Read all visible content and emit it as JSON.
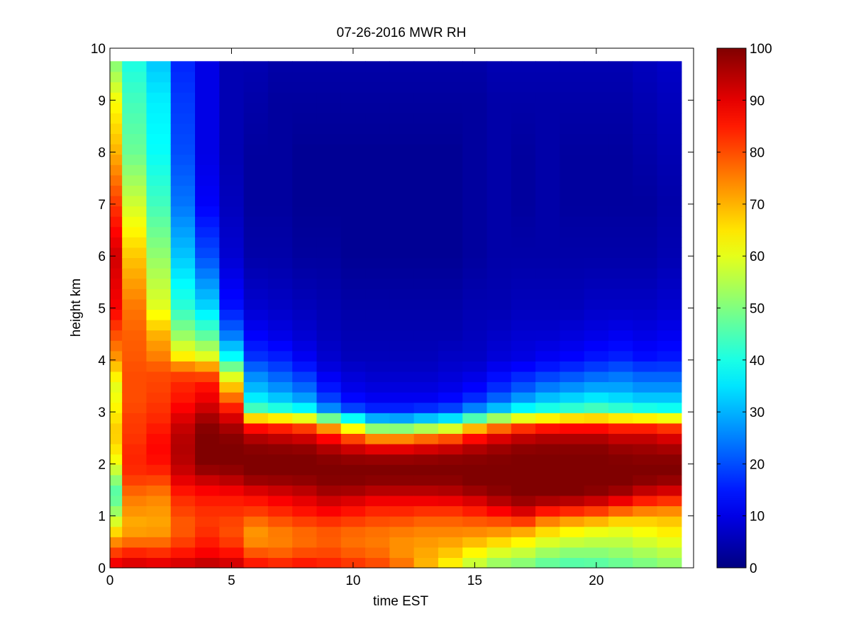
{
  "chart_data": {
    "type": "heatmap",
    "title": "07-26-2016 MWR RH",
    "xlabel": "time EST",
    "ylabel": "height km",
    "xlim": [
      0,
      24
    ],
    "ylim": [
      0,
      10
    ],
    "x_ticks": [
      0,
      5,
      10,
      15,
      20
    ],
    "x_tick_labels": [
      "0",
      "5",
      "10",
      "15",
      "20"
    ],
    "y_ticks": [
      0,
      1,
      2,
      3,
      4,
      5,
      6,
      7,
      8,
      9,
      10
    ],
    "y_tick_labels": [
      "0",
      "1",
      "2",
      "3",
      "4",
      "5",
      "6",
      "7",
      "8",
      "9",
      "10"
    ],
    "colorbar": {
      "colormap": "jet",
      "clim": [
        0,
        100
      ],
      "ticks": [
        0,
        10,
        20,
        30,
        40,
        50,
        60,
        70,
        80,
        90,
        100
      ],
      "tick_labels": [
        "0",
        "10",
        "20",
        "30",
        "40",
        "50",
        "60",
        "70",
        "80",
        "90",
        "100"
      ]
    },
    "data_extent": {
      "x": [
        0,
        23.5
      ],
      "y": [
        0,
        9.75
      ]
    },
    "time_columns_hours": [
      0,
      1,
      2,
      3,
      4,
      5,
      6,
      7,
      8,
      9,
      10,
      11,
      12,
      13,
      14,
      15,
      16,
      17,
      18,
      19,
      20,
      21,
      22,
      23
    ],
    "profile_heights_km": [
      0,
      0.2,
      0.4,
      0.6,
      0.8,
      1.0,
      1.2,
      1.4,
      1.6,
      1.8,
      2.0,
      2.2,
      2.4,
      2.6,
      2.8,
      3.0,
      3.2,
      3.5,
      3.8,
      4.0,
      4.5,
      5.0,
      6.0,
      7.0,
      8.0,
      9.0,
      9.75
    ],
    "rh_profiles": [
      {
        "hour": 0,
        "rh": [
          92,
          85,
          78,
          70,
          62,
          55,
          50,
          45,
          48,
          55,
          60,
          64,
          66,
          68,
          66,
          64,
          62,
          60,
          66,
          72,
          80,
          88,
          92,
          82,
          70,
          62,
          50
        ]
      },
      {
        "hour": 1,
        "rh": [
          93,
          88,
          80,
          74,
          70,
          72,
          74,
          76,
          80,
          83,
          84,
          84,
          83,
          82,
          82,
          81,
          80,
          80,
          80,
          79,
          78,
          76,
          68,
          58,
          48,
          44,
          40
        ]
      },
      {
        "hour": 2,
        "rh": [
          93,
          86,
          80,
          74,
          71,
          72,
          73,
          75,
          79,
          83,
          86,
          87,
          87,
          86,
          84,
          83,
          82,
          81,
          80,
          76,
          70,
          60,
          52,
          44,
          38,
          36,
          32
        ]
      },
      {
        "hour": 3,
        "rh": [
          94,
          88,
          83,
          80,
          78,
          80,
          82,
          84,
          88,
          92,
          94,
          95,
          95,
          94,
          92,
          89,
          86,
          84,
          80,
          66,
          52,
          42,
          32,
          24,
          20,
          18,
          16
        ]
      },
      {
        "hour": 4,
        "rh": [
          96,
          90,
          86,
          84,
          82,
          82,
          84,
          86,
          90,
          96,
          100,
          100,
          100,
          100,
          98,
          94,
          90,
          86,
          78,
          62,
          46,
          34,
          20,
          12,
          10,
          10,
          10
        ]
      },
      {
        "hour": 5,
        "rh": [
          95,
          88,
          84,
          80,
          80,
          82,
          84,
          86,
          92,
          97,
          100,
          100,
          100,
          98,
          94,
          88,
          80,
          68,
          54,
          40,
          24,
          14,
          8,
          6,
          5,
          5,
          5
        ]
      },
      {
        "hour": 6,
        "rh": [
          88,
          82,
          76,
          72,
          74,
          80,
          84,
          88,
          95,
          100,
          100,
          100,
          98,
          92,
          80,
          48,
          38,
          30,
          24,
          18,
          12,
          8,
          4,
          3,
          3,
          4,
          5
        ]
      },
      {
        "hour": 7,
        "rh": [
          87,
          80,
          76,
          74,
          77,
          82,
          86,
          90,
          96,
          100,
          100,
          100,
          97,
          90,
          78,
          45,
          34,
          26,
          20,
          16,
          10,
          7,
          4,
          3,
          3,
          3,
          4
        ]
      },
      {
        "hour": 8,
        "rh": [
          88,
          82,
          78,
          76,
          79,
          84,
          88,
          92,
          97,
          100,
          100,
          100,
          96,
          88,
          74,
          42,
          30,
          22,
          16,
          12,
          8,
          6,
          3,
          2,
          2,
          3,
          4
        ]
      },
      {
        "hour": 9,
        "rh": [
          86,
          82,
          79,
          78,
          80,
          86,
          90,
          95,
          99,
          100,
          100,
          98,
          92,
          82,
          62,
          30,
          20,
          14,
          10,
          8,
          6,
          5,
          3,
          2,
          2,
          3,
          4
        ]
      },
      {
        "hour": 10,
        "rh": [
          84,
          80,
          77,
          76,
          79,
          84,
          88,
          94,
          99,
          100,
          100,
          96,
          88,
          72,
          50,
          22,
          14,
          10,
          8,
          6,
          5,
          4,
          2,
          2,
          2,
          3,
          4
        ]
      },
      {
        "hour": 11,
        "rh": [
          82,
          78,
          76,
          75,
          78,
          82,
          86,
          92,
          98,
          100,
          100,
          95,
          84,
          62,
          38,
          18,
          12,
          9,
          7,
          6,
          5,
          4,
          2,
          2,
          2,
          3,
          4
        ]
      },
      {
        "hour": 12,
        "rh": [
          78,
          74,
          73,
          74,
          77,
          82,
          86,
          92,
          98,
          100,
          100,
          95,
          84,
          62,
          36,
          18,
          12,
          9,
          7,
          6,
          5,
          4,
          2,
          2,
          2,
          3,
          4
        ]
      },
      {
        "hour": 13,
        "rh": [
          70,
          70,
          72,
          73,
          76,
          80,
          86,
          92,
          98,
          100,
          100,
          96,
          86,
          66,
          40,
          20,
          12,
          9,
          7,
          6,
          5,
          4,
          2,
          2,
          2,
          3,
          4
        ]
      },
      {
        "hour": 14,
        "rh": [
          62,
          66,
          70,
          73,
          76,
          80,
          86,
          93,
          98,
          100,
          100,
          97,
          88,
          70,
          44,
          22,
          14,
          10,
          8,
          7,
          5,
          4,
          2,
          2,
          2,
          3,
          4
        ]
      },
      {
        "hour": 15,
        "rh": [
          55,
          60,
          66,
          72,
          76,
          82,
          88,
          95,
          100,
          100,
          100,
          98,
          92,
          80,
          56,
          30,
          18,
          12,
          9,
          7,
          6,
          5,
          3,
          3,
          3,
          3,
          4
        ]
      },
      {
        "hour": 16,
        "rh": [
          50,
          56,
          62,
          70,
          76,
          84,
          92,
          98,
          100,
          100,
          100,
          99,
          95,
          86,
          66,
          36,
          24,
          16,
          12,
          9,
          7,
          5,
          4,
          4,
          4,
          4,
          5
        ]
      },
      {
        "hour": 17,
        "rh": [
          48,
          54,
          60,
          66,
          76,
          88,
          95,
          100,
          100,
          100,
          100,
          100,
          97,
          90,
          74,
          42,
          30,
          20,
          14,
          10,
          8,
          6,
          4,
          3,
          3,
          4,
          5
        ]
      },
      {
        "hour": 18,
        "rh": [
          45,
          50,
          56,
          62,
          70,
          80,
          92,
          100,
          100,
          100,
          100,
          100,
          98,
          92,
          78,
          44,
          34,
          24,
          16,
          12,
          8,
          6,
          4,
          4,
          4,
          4,
          5
        ]
      },
      {
        "hour": 19,
        "rh": [
          44,
          48,
          54,
          60,
          66,
          78,
          90,
          100,
          100,
          100,
          100,
          100,
          98,
          92,
          80,
          46,
          36,
          26,
          18,
          13,
          9,
          6,
          4,
          3,
          3,
          4,
          5
        ]
      },
      {
        "hour": 20,
        "rh": [
          45,
          48,
          54,
          58,
          64,
          76,
          88,
          98,
          100,
          100,
          100,
          100,
          98,
          92,
          80,
          48,
          38,
          28,
          20,
          15,
          10,
          7,
          4,
          3,
          3,
          4,
          5
        ]
      },
      {
        "hour": 21,
        "rh": [
          46,
          50,
          54,
          58,
          62,
          72,
          84,
          95,
          100,
          100,
          100,
          99,
          96,
          90,
          78,
          46,
          36,
          28,
          22,
          16,
          11,
          7,
          4,
          3,
          3,
          4,
          5
        ]
      },
      {
        "hour": 22,
        "rh": [
          48,
          52,
          56,
          60,
          64,
          70,
          80,
          90,
          98,
          100,
          100,
          98,
          96,
          90,
          78,
          44,
          34,
          26,
          20,
          14,
          10,
          7,
          4,
          3,
          4,
          5,
          6
        ]
      },
      {
        "hour": 23,
        "rh": [
          50,
          54,
          58,
          62,
          66,
          70,
          78,
          88,
          96,
          100,
          100,
          98,
          94,
          88,
          76,
          42,
          34,
          26,
          20,
          15,
          11,
          8,
          5,
          4,
          5,
          6,
          7
        ]
      }
    ]
  }
}
